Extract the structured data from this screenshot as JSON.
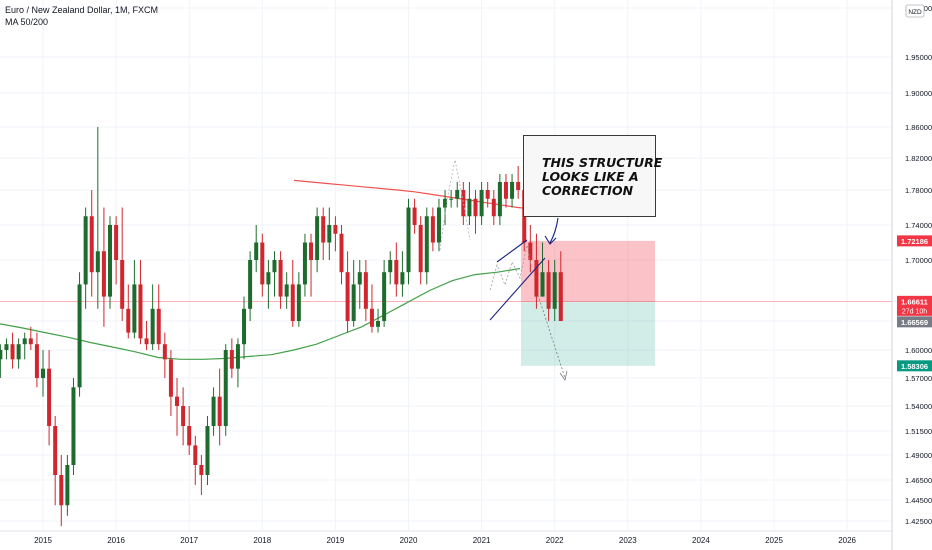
{
  "header": {
    "symbol_line": "Euro / New Zealand Dollar, 1M, FXCM",
    "indicator": "MA 50/200",
    "currency_badge": "NZD"
  },
  "annotation": {
    "lines": [
      "THIS STRUCTURE",
      "LOOKS LIKE A",
      "CORRECTION"
    ]
  },
  "price_tags": {
    "stop": "1.72186",
    "current": "1.66611",
    "countdown": "27d 10h",
    "entry": "1.66569",
    "target": "1.58306"
  },
  "colors": {
    "up": "#1e6b2e",
    "down": "#d0262d",
    "ma50": "#43a047",
    "ma200": "#ef5350",
    "stop_zone": "rgba(242,54,69,0.3)",
    "target_zone": "rgba(8,153,129,0.18)",
    "pattern": "#1a237e"
  },
  "chart_data": {
    "type": "candlestick",
    "ylim": [
      1.41,
      2.01
    ],
    "y_ticks": [
      2.0,
      1.95,
      1.9,
      1.86,
      1.82,
      1.78,
      1.74,
      1.7,
      1.65,
      1.6,
      1.57,
      1.54,
      1.515,
      1.49,
      1.465,
      1.445,
      1.425
    ],
    "y_tick_labels": [
      "2.00000",
      "1.95000",
      "1.90000",
      "1.86000",
      "1.82000",
      "1.78000",
      "1.74000",
      "1.70000",
      "1.65000",
      "1.60000",
      "1.57000",
      "1.54000",
      "1.51500",
      "1.49000",
      "1.46500",
      "1.44500",
      "1.42500"
    ],
    "x_ticks": [
      "2015",
      "2016",
      "2017",
      "2018",
      "2019",
      "2020",
      "2021",
      "2022",
      "2023",
      "2024",
      "2025",
      "2026"
    ],
    "candles_start": "2014-02",
    "candles": [
      [
        1.66,
        1.68,
        1.63,
        1.64
      ],
      [
        1.64,
        1.66,
        1.6,
        1.61
      ],
      [
        1.61,
        1.63,
        1.6,
        1.62
      ],
      [
        1.62,
        1.63,
        1.58,
        1.59
      ],
      [
        1.59,
        1.61,
        1.57,
        1.6
      ],
      [
        1.6,
        1.62,
        1.59,
        1.61
      ],
      [
        1.61,
        1.63,
        1.58,
        1.59
      ],
      [
        1.59,
        1.62,
        1.58,
        1.61
      ],
      [
        1.61,
        1.63,
        1.59,
        1.62
      ],
      [
        1.62,
        1.64,
        1.6,
        1.61
      ],
      [
        1.61,
        1.63,
        1.56,
        1.57
      ],
      [
        1.57,
        1.6,
        1.55,
        1.58
      ],
      [
        1.58,
        1.6,
        1.5,
        1.52
      ],
      [
        1.52,
        1.53,
        1.44,
        1.47
      ],
      [
        1.47,
        1.49,
        1.42,
        1.44
      ],
      [
        1.44,
        1.49,
        1.43,
        1.48
      ],
      [
        1.48,
        1.57,
        1.47,
        1.56
      ],
      [
        1.56,
        1.69,
        1.55,
        1.68
      ],
      [
        1.68,
        1.76,
        1.66,
        1.75
      ],
      [
        1.75,
        1.78,
        1.67,
        1.69
      ],
      [
        1.69,
        1.86,
        1.66,
        1.71
      ],
      [
        1.71,
        1.76,
        1.64,
        1.67
      ],
      [
        1.67,
        1.75,
        1.66,
        1.74
      ],
      [
        1.74,
        1.75,
        1.68,
        1.7
      ],
      [
        1.7,
        1.76,
        1.65,
        1.66
      ],
      [
        1.66,
        1.68,
        1.62,
        1.63
      ],
      [
        1.63,
        1.7,
        1.62,
        1.68
      ],
      [
        1.68,
        1.7,
        1.61,
        1.62
      ],
      [
        1.62,
        1.65,
        1.6,
        1.61
      ],
      [
        1.61,
        1.68,
        1.6,
        1.66
      ],
      [
        1.66,
        1.68,
        1.6,
        1.61
      ],
      [
        1.61,
        1.63,
        1.57,
        1.59
      ],
      [
        1.59,
        1.6,
        1.53,
        1.55
      ],
      [
        1.55,
        1.57,
        1.51,
        1.54
      ],
      [
        1.54,
        1.56,
        1.5,
        1.52
      ],
      [
        1.52,
        1.54,
        1.49,
        1.5
      ],
      [
        1.5,
        1.51,
        1.46,
        1.48
      ],
      [
        1.48,
        1.49,
        1.45,
        1.47
      ],
      [
        1.47,
        1.53,
        1.46,
        1.52
      ],
      [
        1.52,
        1.56,
        1.51,
        1.55
      ],
      [
        1.55,
        1.58,
        1.5,
        1.52
      ],
      [
        1.52,
        1.61,
        1.51,
        1.6
      ],
      [
        1.6,
        1.62,
        1.57,
        1.58
      ],
      [
        1.58,
        1.62,
        1.56,
        1.61
      ],
      [
        1.61,
        1.67,
        1.59,
        1.66
      ],
      [
        1.66,
        1.71,
        1.65,
        1.7
      ],
      [
        1.7,
        1.74,
        1.69,
        1.72
      ],
      [
        1.72,
        1.73,
        1.67,
        1.68
      ],
      [
        1.68,
        1.7,
        1.66,
        1.69
      ],
      [
        1.69,
        1.71,
        1.67,
        1.7
      ],
      [
        1.7,
        1.71,
        1.66,
        1.67
      ],
      [
        1.67,
        1.69,
        1.66,
        1.68
      ],
      [
        1.68,
        1.7,
        1.64,
        1.65
      ],
      [
        1.65,
        1.69,
        1.64,
        1.68
      ],
      [
        1.68,
        1.73,
        1.67,
        1.72
      ],
      [
        1.72,
        1.73,
        1.67,
        1.7
      ],
      [
        1.7,
        1.76,
        1.69,
        1.75
      ],
      [
        1.75,
        1.76,
        1.7,
        1.72
      ],
      [
        1.72,
        1.76,
        1.7,
        1.74
      ],
      [
        1.74,
        1.75,
        1.71,
        1.73
      ],
      [
        1.73,
        1.74,
        1.68,
        1.69
      ],
      [
        1.69,
        1.71,
        1.63,
        1.65
      ],
      [
        1.65,
        1.7,
        1.64,
        1.68
      ],
      [
        1.68,
        1.7,
        1.66,
        1.69
      ],
      [
        1.69,
        1.7,
        1.65,
        1.66
      ],
      [
        1.66,
        1.68,
        1.63,
        1.64
      ],
      [
        1.64,
        1.66,
        1.63,
        1.65
      ],
      [
        1.65,
        1.7,
        1.64,
        1.69
      ],
      [
        1.69,
        1.71,
        1.68,
        1.7
      ],
      [
        1.7,
        1.72,
        1.67,
        1.68
      ],
      [
        1.68,
        1.71,
        1.67,
        1.69
      ],
      [
        1.69,
        1.77,
        1.68,
        1.76
      ],
      [
        1.76,
        1.77,
        1.73,
        1.74
      ],
      [
        1.74,
        1.75,
        1.68,
        1.69
      ],
      [
        1.69,
        1.76,
        1.68,
        1.75
      ],
      [
        1.75,
        1.76,
        1.71,
        1.72
      ],
      [
        1.72,
        1.77,
        1.71,
        1.76
      ],
      [
        1.76,
        1.78,
        1.74,
        1.77
      ],
      [
        1.77,
        1.78,
        1.76,
        1.77
      ],
      [
        1.77,
        1.79,
        1.76,
        1.78
      ],
      [
        1.78,
        1.79,
        1.74,
        1.75
      ],
      [
        1.75,
        1.79,
        1.74,
        1.77
      ],
      [
        1.77,
        1.78,
        1.73,
        1.75
      ],
      [
        1.75,
        1.79,
        1.74,
        1.78
      ],
      [
        1.78,
        1.79,
        1.76,
        1.77
      ],
      [
        1.77,
        1.78,
        1.74,
        1.75
      ],
      [
        1.75,
        1.8,
        1.74,
        1.79
      ],
      [
        1.79,
        1.8,
        1.76,
        1.77
      ],
      [
        1.77,
        1.8,
        1.76,
        1.79
      ],
      [
        1.79,
        1.81,
        1.77,
        1.78
      ],
      [
        1.78,
        1.79,
        1.71,
        1.72
      ],
      [
        1.72,
        1.74,
        1.69,
        1.7
      ],
      [
        1.7,
        1.73,
        1.66,
        1.67
      ],
      [
        1.67,
        1.72,
        1.67,
        1.69
      ],
      [
        1.69,
        1.7,
        1.65,
        1.66
      ],
      [
        1.66,
        1.7,
        1.65,
        1.69
      ],
      [
        1.69,
        1.71,
        1.65,
        1.65
      ]
    ],
    "ma_series": [
      {
        "name": "MA 50/200 (50)",
        "values": [
          1.645,
          1.638,
          1.63,
          1.622,
          1.613,
          1.605,
          1.598,
          1.592,
          1.59,
          1.59,
          1.591,
          1.593,
          1.595,
          1.6,
          1.61,
          1.625,
          1.64,
          1.655,
          1.665,
          1.675,
          1.683,
          1.688,
          1.69,
          1.693
        ]
      },
      {
        "name": "MA 50/200 (200)",
        "values": [
          1.792,
          1.79,
          1.788,
          1.786,
          1.784,
          1.782,
          1.78,
          1.778,
          1.775,
          1.772,
          1.769,
          1.766,
          1.763,
          1.76,
          1.758
        ]
      }
    ],
    "trade_setup": {
      "stop": 1.72186,
      "entry": 1.66569,
      "target": 1.58306
    }
  }
}
